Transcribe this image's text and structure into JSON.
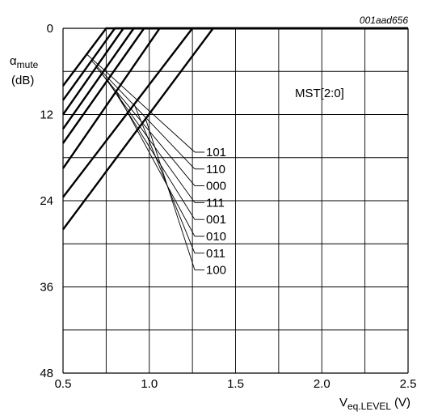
{
  "chart_data": {
    "type": "line",
    "reference_id": "001aad656",
    "ylabel": {
      "symbol": "α",
      "sub": "mute",
      "unit": "(dB)"
    },
    "xlabel": {
      "symbol": "V",
      "sub": "eq.LEVEL",
      "unit": "(V)"
    },
    "xlim": [
      0.5,
      2.5
    ],
    "ylim": [
      0,
      48
    ],
    "y_inverted": true,
    "grid": true,
    "x_ticks": [
      {
        "v": 0.5,
        "label": "0.5"
      },
      {
        "v": 1.0,
        "label": "1.0"
      },
      {
        "v": 1.5,
        "label": "1.5"
      },
      {
        "v": 2.0,
        "label": "2.0"
      },
      {
        "v": 2.5,
        "label": "2.5"
      }
    ],
    "y_ticks": [
      {
        "v": 0,
        "label": "0"
      },
      {
        "v": 12,
        "label": "12"
      },
      {
        "v": 24,
        "label": "24"
      },
      {
        "v": 36,
        "label": "36"
      },
      {
        "v": 48,
        "label": "48"
      }
    ],
    "legend_title": "MST[2:0]",
    "series": [
      {
        "name": "101",
        "points": [
          [
            0.5,
            8.0
          ],
          [
            0.75,
            0
          ],
          [
            2.5,
            0
          ]
        ]
      },
      {
        "name": "110",
        "points": [
          [
            0.5,
            10.0
          ],
          [
            0.8,
            0
          ],
          [
            2.5,
            0
          ]
        ]
      },
      {
        "name": "000",
        "points": [
          [
            0.5,
            12.0
          ],
          [
            0.85,
            0
          ],
          [
            2.5,
            0
          ]
        ]
      },
      {
        "name": "111",
        "points": [
          [
            0.5,
            14.0
          ],
          [
            0.91,
            0
          ],
          [
            2.5,
            0
          ]
        ]
      },
      {
        "name": "001",
        "points": [
          [
            0.5,
            16.0
          ],
          [
            0.97,
            0
          ],
          [
            2.5,
            0
          ]
        ]
      },
      {
        "name": "010",
        "points": [
          [
            0.5,
            19.5
          ],
          [
            1.06,
            0
          ],
          [
            2.5,
            0
          ]
        ]
      },
      {
        "name": "011",
        "points": [
          [
            0.5,
            23.5
          ],
          [
            1.25,
            0
          ],
          [
            2.5,
            0
          ]
        ]
      },
      {
        "name": "100",
        "points": [
          [
            0.5,
            28.0
          ],
          [
            1.37,
            0
          ],
          [
            2.5,
            0
          ]
        ]
      }
    ],
    "series_labels": [
      "101",
      "110",
      "000",
      "111",
      "001",
      "010",
      "011",
      "100"
    ]
  }
}
